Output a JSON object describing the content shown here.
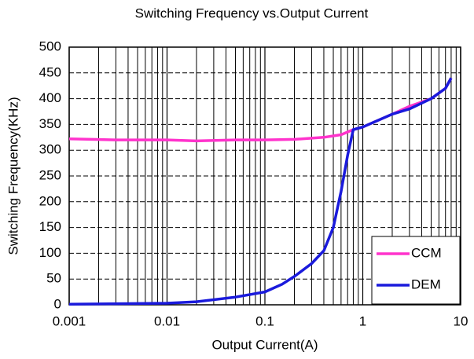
{
  "chart_data": {
    "type": "line",
    "title": "Switching Frequency vs.Output Current",
    "x_label": "Output Current(A)",
    "y_label": "Switching Frequency(KHz)",
    "x_scale": "log",
    "xlim": [
      0.001,
      10
    ],
    "xticks": [
      0.001,
      0.01,
      0.1,
      1,
      10
    ],
    "ylim": [
      0,
      500
    ],
    "yticks": [
      0,
      50,
      100,
      150,
      200,
      250,
      300,
      350,
      400,
      450,
      500
    ],
    "grid": true,
    "legend": "lower right",
    "series": [
      {
        "name": "CCM",
        "color": "#ff33cc",
        "x": [
          0.001,
          0.003,
          0.01,
          0.02,
          0.05,
          0.1,
          0.2,
          0.4,
          0.6,
          0.8,
          1,
          2,
          3,
          5,
          7,
          8
        ],
        "values": [
          322,
          320,
          320,
          318,
          320,
          320,
          321,
          325,
          330,
          340,
          345,
          370,
          385,
          400,
          420,
          440
        ]
      },
      {
        "name": "DEM",
        "color": "#1a1adc",
        "x": [
          0.001,
          0.01,
          0.02,
          0.05,
          0.1,
          0.15,
          0.2,
          0.3,
          0.4,
          0.5,
          0.6,
          0.7,
          0.8,
          1,
          2,
          3,
          5,
          7,
          8
        ],
        "values": [
          1,
          3,
          6,
          15,
          25,
          40,
          55,
          80,
          105,
          150,
          220,
          290,
          340,
          345,
          370,
          380,
          400,
          420,
          440
        ]
      }
    ]
  }
}
